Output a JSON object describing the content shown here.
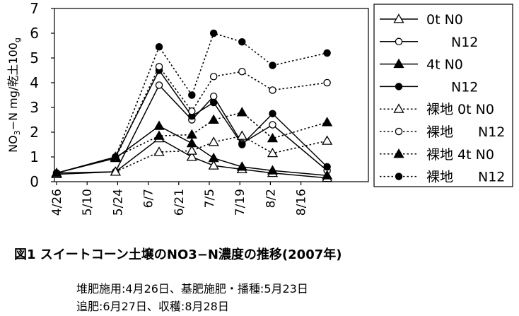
{
  "chart_data": {
    "type": "line",
    "ylabel": "NO3−N mg/乾土100g",
    "ylabel_parts": [
      "NO",
      "3",
      "−N mg/乾土100",
      "g"
    ],
    "ylim": [
      0,
      7
    ],
    "yticks": [
      "0",
      "1",
      "2",
      "3",
      "4",
      "5",
      "6",
      "7"
    ],
    "xticks": [
      "4/26",
      "5/10",
      "5/24",
      "6/7",
      "6/21",
      "7/5",
      "7/19",
      "8/2",
      "8/16"
    ],
    "grid": false,
    "legend_position": "right",
    "series": [
      {
        "name": "0t N0",
        "marker": "triangle-open",
        "line": "solid",
        "x": [
          "4/26",
          "5/23",
          "6/12",
          "6/27",
          "7/7",
          "7/20",
          "8/3",
          "8/28"
        ],
        "y": [
          0.3,
          0.4,
          1.75,
          1.0,
          0.65,
          0.5,
          0.35,
          0.15
        ]
      },
      {
        "name": "N12",
        "marker": "circle-open",
        "line": "solid",
        "x": [
          "4/26",
          "5/23",
          "6/12",
          "6/27",
          "7/7",
          "7/20",
          "8/3",
          "8/28"
        ],
        "y": [
          0.35,
          0.4,
          3.9,
          2.5,
          3.45,
          1.55,
          2.3,
          0.45
        ]
      },
      {
        "name": "4t N0",
        "marker": "triangle-filled",
        "line": "solid",
        "x": [
          "4/26",
          "5/23",
          "6/12",
          "6/27",
          "7/7",
          "7/20",
          "8/3",
          "8/28"
        ],
        "y": [
          0.35,
          0.95,
          2.25,
          1.55,
          0.95,
          0.6,
          0.45,
          0.25
        ]
      },
      {
        "name": "N12",
        "marker": "circle-filled",
        "line": "solid",
        "x": [
          "4/26",
          "5/23",
          "6/12",
          "6/27",
          "7/7",
          "7/20",
          "8/3",
          "8/28"
        ],
        "y": [
          0.35,
          1.0,
          4.5,
          2.65,
          3.2,
          1.5,
          2.75,
          0.6
        ]
      },
      {
        "name": "裸地 0t N0",
        "marker": "triangle-open",
        "line": "dotted",
        "x": [
          "5/23",
          "6/12",
          "6/27",
          "7/7",
          "7/20",
          "8/3",
          "8/28"
        ],
        "y": [
          0.4,
          1.2,
          1.25,
          1.6,
          1.85,
          1.15,
          1.65
        ]
      },
      {
        "name": "裸地 N12",
        "marker": "circle-open",
        "line": "dotted",
        "x": [
          "5/23",
          "6/12",
          "6/27",
          "7/7",
          "7/20",
          "8/3",
          "8/28"
        ],
        "y": [
          0.95,
          4.65,
          2.85,
          4.25,
          4.45,
          3.7,
          4.0
        ]
      },
      {
        "name": "裸地 4t N0",
        "marker": "triangle-filled",
        "line": "dotted",
        "x": [
          "5/23",
          "6/12",
          "6/27",
          "7/7",
          "7/20",
          "8/3",
          "8/28"
        ],
        "y": [
          1.0,
          1.85,
          1.9,
          2.5,
          2.8,
          1.75,
          2.4
        ]
      },
      {
        "name": "裸地 N12",
        "marker": "circle-filled",
        "line": "dotted",
        "x": [
          "5/23",
          "6/12",
          "6/27",
          "7/7",
          "7/20",
          "8/3",
          "8/28"
        ],
        "y": [
          1.0,
          5.45,
          3.5,
          6.0,
          5.65,
          4.7,
          5.2
        ]
      }
    ]
  },
  "caption": {
    "title": "図1 スイートコーン土壌のNO3−N濃度の推移(2007年)",
    "note1": "堆肥施用:4月26日、基肥施肥・播種:5月23日",
    "note2": "追肥:6月27日、収穫:8月28日"
  }
}
